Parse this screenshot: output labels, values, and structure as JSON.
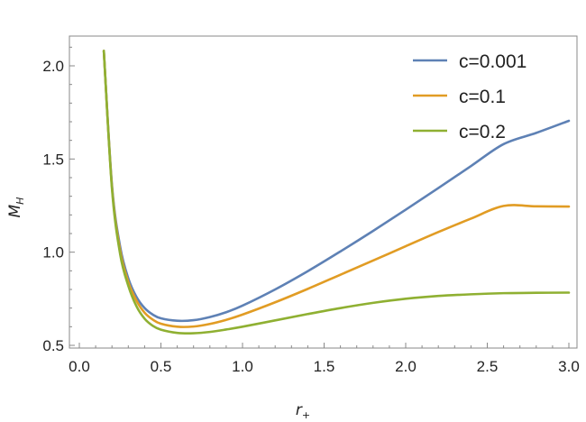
{
  "chart_data": {
    "type": "line",
    "xlabel": "r",
    "xlabel_sub": "+",
    "ylabel": "M",
    "ylabel_sub": "H",
    "xlim": [
      0.0,
      3.0
    ],
    "ylim": [
      0.5,
      2.15
    ],
    "x_ticks": [
      "0.0",
      "0.5",
      "1.0",
      "1.5",
      "2.0",
      "2.5",
      "3.0"
    ],
    "y_ticks": [
      "0.5",
      "1.0",
      "1.5",
      "2.0"
    ],
    "x_tick_values": [
      0.0,
      0.5,
      1.0,
      1.5,
      2.0,
      2.5,
      3.0
    ],
    "y_tick_values": [
      0.5,
      1.0,
      1.5,
      2.0
    ],
    "grid": false,
    "legend_position": "top-right",
    "x": [
      0.15,
      0.2,
      0.25,
      0.3,
      0.35,
      0.4,
      0.45,
      0.5,
      0.6,
      0.7,
      0.8,
      0.9,
      1.0,
      1.2,
      1.4,
      1.6,
      1.8,
      2.0,
      2.2,
      2.4,
      2.6,
      2.8,
      3.0
    ],
    "series": [
      {
        "name": "c=0.001",
        "color": "#5e81b5",
        "values": [
          2.08,
          1.36,
          1.03,
          0.86,
          0.76,
          0.7,
          0.665,
          0.645,
          0.632,
          0.635,
          0.652,
          0.678,
          0.713,
          0.8,
          0.898,
          1.004,
          1.114,
          1.228,
          1.344,
          1.462,
          1.58,
          1.64,
          1.705
        ]
      },
      {
        "name": "c=0.1",
        "color": "#e19c24",
        "values": [
          2.08,
          1.35,
          1.01,
          0.84,
          0.74,
          0.675,
          0.638,
          0.616,
          0.6,
          0.601,
          0.615,
          0.637,
          0.665,
          0.731,
          0.803,
          0.879,
          0.955,
          1.032,
          1.108,
          1.18,
          1.248,
          1.246,
          1.245
        ]
      },
      {
        "name": "c=0.2",
        "color": "#8fb032",
        "values": [
          2.08,
          1.34,
          0.99,
          0.82,
          0.71,
          0.643,
          0.605,
          0.584,
          0.567,
          0.565,
          0.572,
          0.585,
          0.6,
          0.634,
          0.668,
          0.7,
          0.728,
          0.75,
          0.765,
          0.774,
          0.78,
          0.782,
          0.783
        ]
      }
    ]
  }
}
